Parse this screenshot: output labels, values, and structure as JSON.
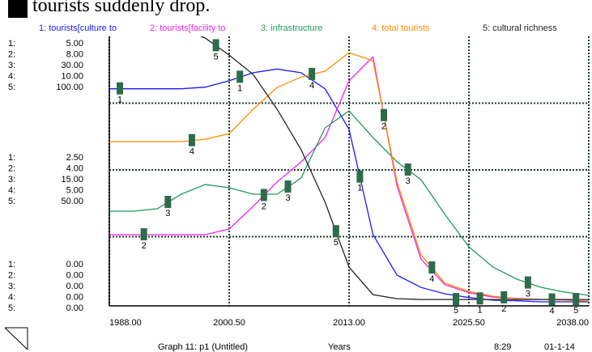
{
  "top_note": "tourists suddenly drop.",
  "chart_data": {
    "type": "line",
    "x_label": "Years",
    "footer": {
      "graph": "Graph 11: p1 (Untitled)",
      "time": "8:29",
      "date": "01-1-14"
    },
    "x": [
      1988,
      1990.5,
      1993,
      1995.5,
      1998,
      2000.5,
      2003,
      2005.5,
      2008,
      2010.5,
      2013,
      2015.5,
      2018,
      2020.5,
      2023,
      2025.5,
      2028,
      2030.5,
      2033,
      2035.5,
      2038
    ],
    "xlim": [
      1988,
      2038
    ],
    "xticks": [
      {
        "value": 1988,
        "label": "1988.00"
      },
      {
        "value": 2000.5,
        "label": "2000.50"
      },
      {
        "value": 2013,
        "label": "2013.00"
      },
      {
        "value": 2025.5,
        "label": "2025.50"
      },
      {
        "value": 2038,
        "label": "2038.00"
      }
    ],
    "grid": true,
    "series": [
      {
        "name": "1: tourists[culture to",
        "key": "1:",
        "marker": "1",
        "color": "#1a1aff",
        "ylim": [
          0,
          5
        ],
        "yticks": [
          {
            "value": 0,
            "label": "0.00"
          },
          {
            "value": 2.5,
            "label": "2.50"
          },
          {
            "value": 5,
            "label": "5.00"
          }
        ],
        "values": [
          4.02,
          4.02,
          4.02,
          4.02,
          4.05,
          4.17,
          4.32,
          4.39,
          4.32,
          4.02,
          3.26,
          1.29,
          0.53,
          0.3,
          0.18,
          0.11,
          0.06,
          0.05,
          0.03,
          0.03,
          0.03
        ]
      },
      {
        "name": "2: tourists[facility to",
        "key": "2:",
        "marker": "2",
        "color": "#ee22ee",
        "ylim": [
          0,
          8
        ],
        "yticks": [
          {
            "value": 0,
            "label": "0.00"
          },
          {
            "value": 4,
            "label": "4.00"
          },
          {
            "value": 8,
            "label": "8.00"
          }
        ],
        "values": [
          2.06,
          2.06,
          2.06,
          2.06,
          2.06,
          2.23,
          2.91,
          3.64,
          4.24,
          4.97,
          6.67,
          7.39,
          3.52,
          1.33,
          0.56,
          0.32,
          0.19,
          0.15,
          0.12,
          0.1,
          0.07
        ]
      },
      {
        "name": "3: infrastructure",
        "key": "3:",
        "marker": "3",
        "color": "#1f9a5a",
        "ylim": [
          0,
          30
        ],
        "yticks": [
          {
            "value": 0,
            "label": "0.00"
          },
          {
            "value": 15,
            "label": "15.00"
          },
          {
            "value": 30,
            "label": "30.00"
          }
        ],
        "values": [
          10.36,
          10.36,
          10.64,
          12.27,
          13.36,
          13.0,
          12.27,
          12.27,
          14.09,
          19.73,
          21.64,
          18.64,
          15.91,
          13.91,
          10.0,
          6.36,
          4.09,
          2.73,
          1.82,
          1.27,
          0.91
        ]
      },
      {
        "name": "4: total tourists",
        "key": "4:",
        "marker": "4",
        "color": "#ff8c00",
        "ylim": [
          0,
          10
        ],
        "yticks": [
          {
            "value": 0,
            "label": "0.00"
          },
          {
            "value": 5,
            "label": "5.00"
          },
          {
            "value": 10,
            "label": "10.00"
          }
        ],
        "values": [
          6.06,
          6.06,
          6.06,
          6.06,
          6.15,
          6.36,
          7.27,
          8.09,
          8.48,
          8.7,
          9.39,
          9.09,
          4.55,
          1.82,
          0.76,
          0.45,
          0.27,
          0.18,
          0.15,
          0.12,
          0.09
        ]
      },
      {
        "name": "5: cultural richness",
        "key": "5:",
        "marker": "5",
        "color": "#222222",
        "ylim": [
          0,
          100
        ],
        "yticks": [
          {
            "value": 0,
            "label": "0.00"
          },
          {
            "value": 50,
            "label": "50.00"
          },
          {
            "value": 100,
            "label": "100.00"
          }
        ],
        "values": [
          115,
          112,
          108,
          103,
          99.4,
          93.0,
          85.8,
          72.7,
          57.6,
          37.9,
          13.6,
          3.3,
          1.8,
          1.5,
          1.5,
          1.5,
          1.5,
          1.5,
          1.5,
          1.5,
          1.5
        ]
      }
    ]
  }
}
